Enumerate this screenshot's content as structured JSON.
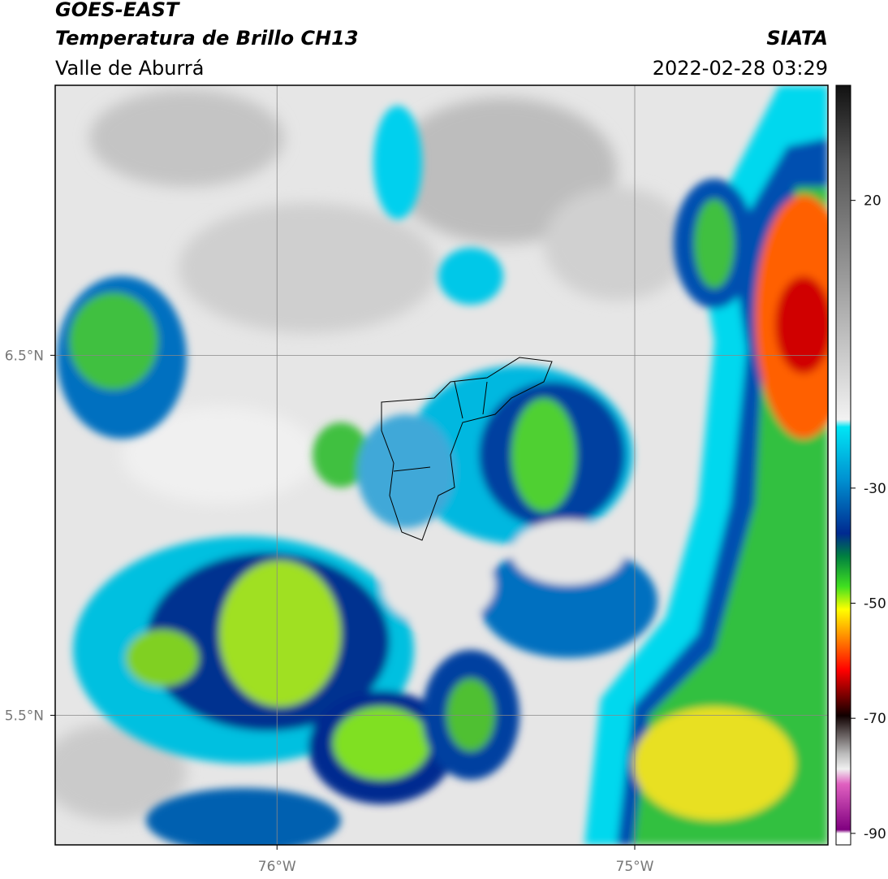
{
  "header": {
    "satellite": "GOES-EAST",
    "product": "Temperatura de Brillo CH13",
    "region": "Valle de Aburrá",
    "source": "SIATA",
    "datetime": "2022-02-28 03:29"
  },
  "map": {
    "xlim": [
      -76.62,
      -74.46
    ],
    "ylim": [
      5.14,
      7.25
    ],
    "xticks": [
      {
        "value": -76,
        "label": "76°W"
      },
      {
        "value": -75,
        "label": "75°W"
      }
    ],
    "yticks": [
      {
        "value": 6.5,
        "label": "6.5°N"
      },
      {
        "value": 5.5,
        "label": "5.5°N"
      }
    ],
    "grid": true
  },
  "colorbar": {
    "lim": [
      -92,
      40
    ],
    "ticks": [
      20,
      -30,
      -50,
      -70,
      -90
    ]
  }
}
